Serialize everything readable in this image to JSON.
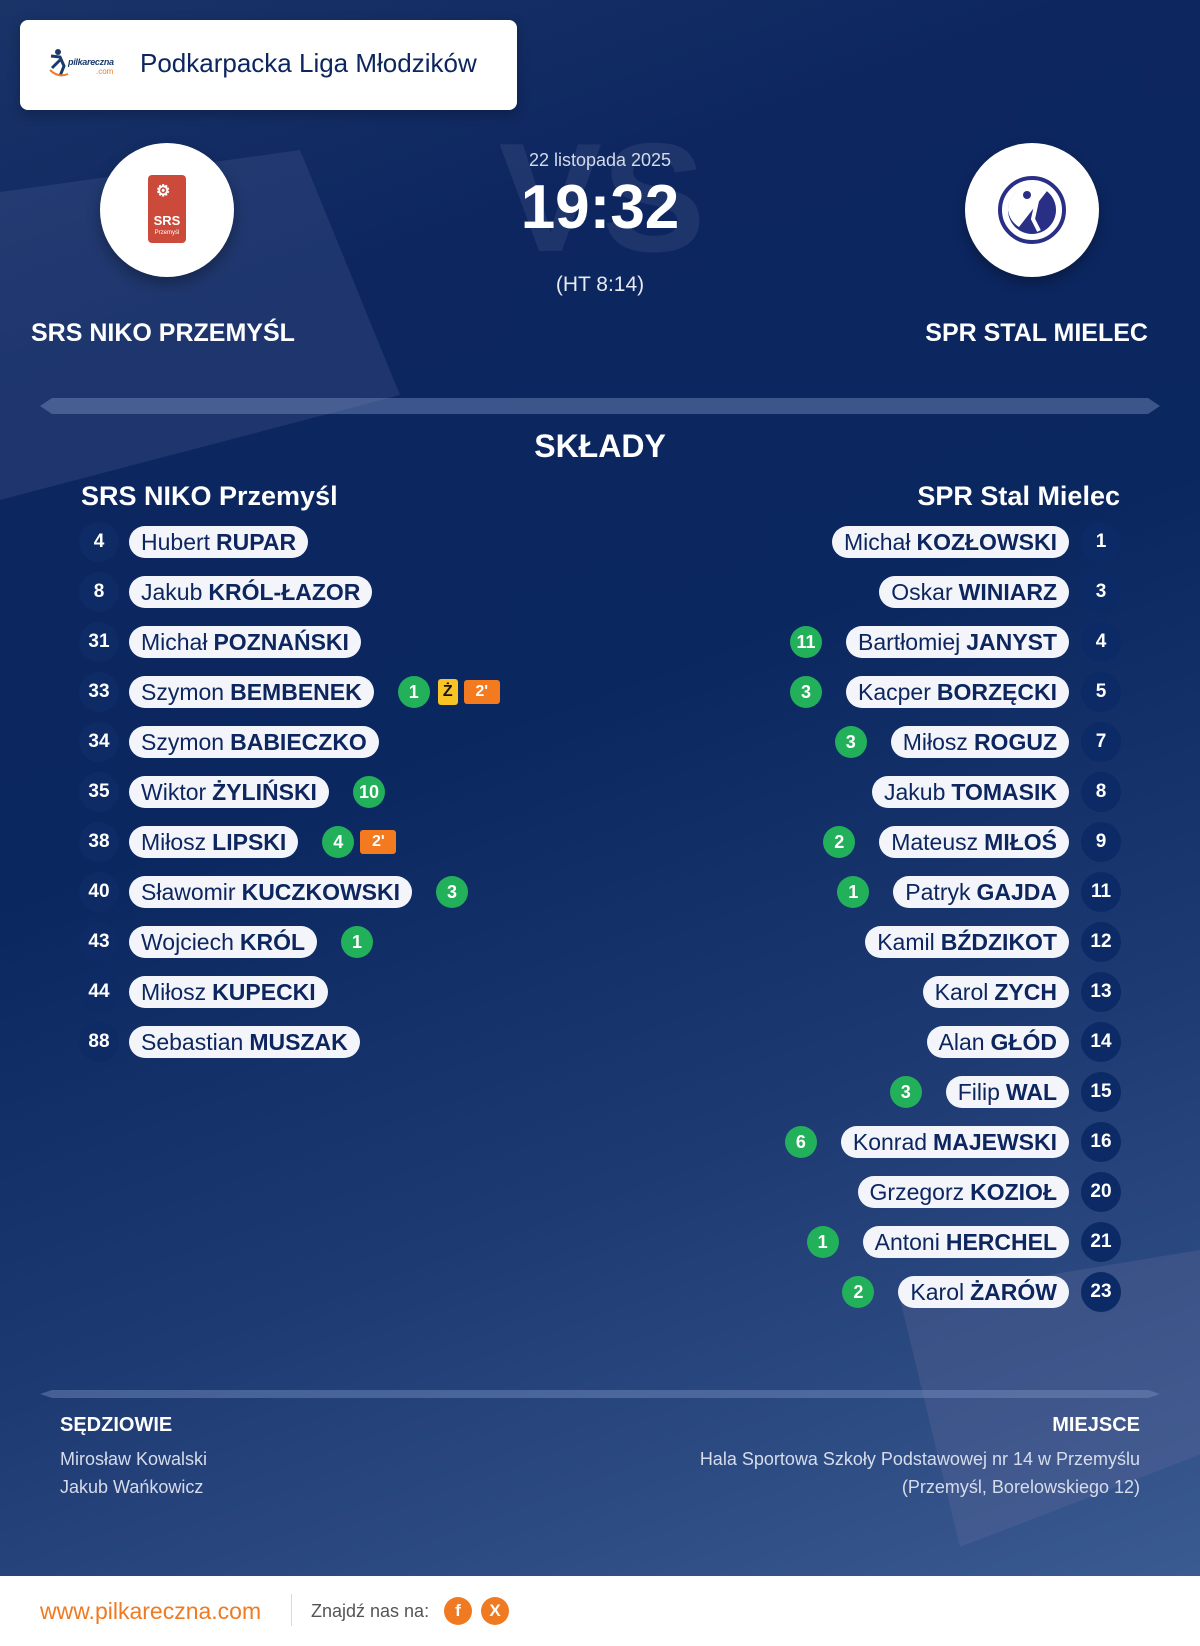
{
  "header": {
    "logo_text": "pilkareczna",
    "logo_sub": ".com",
    "league": "Podkarpacka Liga Młodzików"
  },
  "match": {
    "date": "22 listopada 2025",
    "score": "19:32",
    "halftime": "(HT 8:14)",
    "vs_watermark": "VS"
  },
  "home": {
    "name": "SRS NIKO PRZEMYŚL",
    "lineup_title": "SRS NIKO Przemyśl",
    "logo_text": "SRS",
    "logo_sub": "Przemyśl",
    "players": [
      {
        "number": "4",
        "first": "Hubert",
        "last": "RUPAR",
        "goals": "",
        "yellow": "",
        "susp": ""
      },
      {
        "number": "8",
        "first": "Jakub",
        "last": "KRÓL-ŁAZOR",
        "goals": "",
        "yellow": "",
        "susp": ""
      },
      {
        "number": "31",
        "first": "Michał",
        "last": "POZNAŃSKI",
        "goals": "",
        "yellow": "",
        "susp": ""
      },
      {
        "number": "33",
        "first": "Szymon",
        "last": "BEMBENEK",
        "goals": "1",
        "yellow": "Ż",
        "susp": "2'"
      },
      {
        "number": "34",
        "first": "Szymon",
        "last": "BABIECZKO",
        "goals": "",
        "yellow": "",
        "susp": ""
      },
      {
        "number": "35",
        "first": "Wiktor",
        "last": "ŻYLIŃSKI",
        "goals": "10",
        "yellow": "",
        "susp": ""
      },
      {
        "number": "38",
        "first": "Miłosz",
        "last": "LIPSKI",
        "goals": "4",
        "yellow": "",
        "susp": "2'"
      },
      {
        "number": "40",
        "first": "Sławomir",
        "last": "KUCZKOWSKI",
        "goals": "3",
        "yellow": "",
        "susp": ""
      },
      {
        "number": "43",
        "first": "Wojciech",
        "last": "KRÓL",
        "goals": "1",
        "yellow": "",
        "susp": ""
      },
      {
        "number": "44",
        "first": "Miłosz",
        "last": "KUPECKI",
        "goals": "",
        "yellow": "",
        "susp": ""
      },
      {
        "number": "88",
        "first": "Sebastian",
        "last": "MUSZAK",
        "goals": "",
        "yellow": "",
        "susp": ""
      }
    ]
  },
  "away": {
    "name": "SPR STAL MIELEC",
    "lineup_title": "SPR Stal Mielec",
    "players": [
      {
        "number": "1",
        "first": "Michał",
        "last": "KOZŁOWSKI",
        "goals": ""
      },
      {
        "number": "3",
        "first": "Oskar",
        "last": "WINIARZ",
        "goals": ""
      },
      {
        "number": "4",
        "first": "Bartłomiej",
        "last": "JANYST",
        "goals": "11"
      },
      {
        "number": "5",
        "first": "Kacper",
        "last": "BORZĘCKI",
        "goals": "3"
      },
      {
        "number": "7",
        "first": "Miłosz",
        "last": "ROGUZ",
        "goals": "3"
      },
      {
        "number": "8",
        "first": "Jakub",
        "last": "TOMASIK",
        "goals": ""
      },
      {
        "number": "9",
        "first": "Mateusz",
        "last": "MIŁOŚ",
        "goals": "2"
      },
      {
        "number": "11",
        "first": "Patryk",
        "last": "GAJDA",
        "goals": "1"
      },
      {
        "number": "12",
        "first": "Kamil",
        "last": "BŹDZIKOT",
        "goals": ""
      },
      {
        "number": "13",
        "first": "Karol",
        "last": "ZYCH",
        "goals": ""
      },
      {
        "number": "14",
        "first": "Alan",
        "last": "GŁÓD",
        "goals": ""
      },
      {
        "number": "15",
        "first": "Filip",
        "last": "WAL",
        "goals": "3"
      },
      {
        "number": "16",
        "first": "Konrad",
        "last": "MAJEWSKI",
        "goals": "6"
      },
      {
        "number": "20",
        "first": "Grzegorz",
        "last": "KOZIOŁ",
        "goals": ""
      },
      {
        "number": "21",
        "first": "Antoni",
        "last": "HERCHEL",
        "goals": "1"
      },
      {
        "number": "23",
        "first": "Karol",
        "last": "ŻARÓW",
        "goals": "2"
      }
    ]
  },
  "section_title": "SKŁADY",
  "referees": {
    "title": "SĘDZIOWIE",
    "names": [
      "Mirosław Kowalski",
      "Jakub Wańkowicz"
    ]
  },
  "venue": {
    "title": "MIEJSCE",
    "name": "Hala Sportowa Szkoły Podstawowej nr 14 w Przemyślu",
    "address": "(Przemyśl, Borelowskiego 12)"
  },
  "footer": {
    "site": "www.pilkareczna.com",
    "find_us": "Znajdź nas na:",
    "social": [
      {
        "icon": "facebook-icon",
        "glyph": "f"
      },
      {
        "icon": "x-icon",
        "glyph": "X"
      }
    ]
  },
  "colors": {
    "navy": "#0d2660",
    "goal_green": "#22b05a",
    "yellow_card": "#f7c325",
    "suspension_orange": "#f47a1f",
    "brand_orange": "#f07a21"
  }
}
